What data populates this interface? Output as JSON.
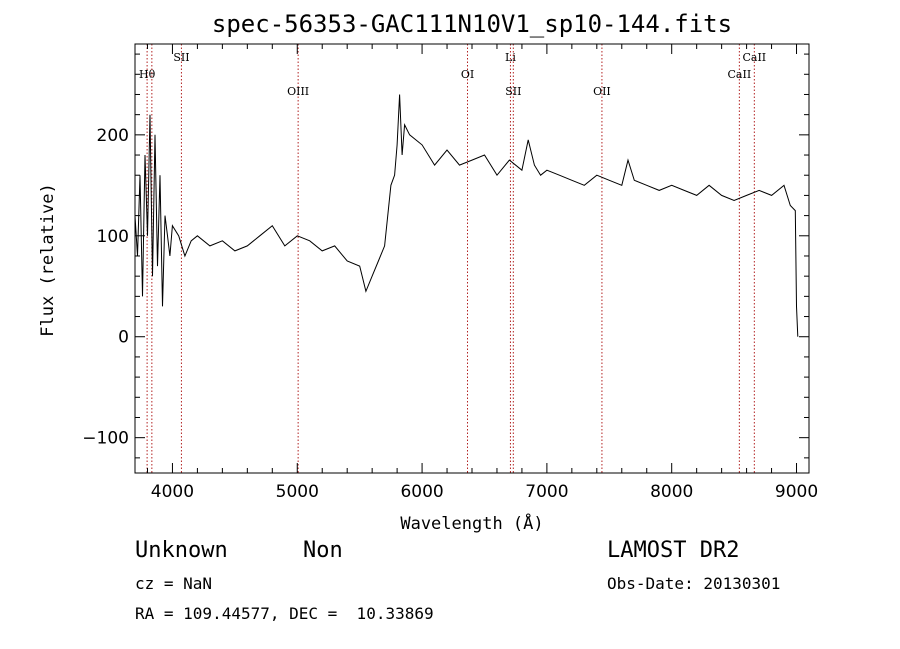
{
  "chart_data": {
    "type": "line",
    "title": "spec-56353-GAC111N10V1_sp10-144.fits",
    "xlabel": "Wavelength (Å)",
    "ylabel": "Flux (relative)",
    "xlim": [
      3700,
      9100
    ],
    "ylim": [
      -135,
      290
    ],
    "x_ticks": [
      4000,
      5000,
      6000,
      7000,
      8000,
      9000
    ],
    "y_ticks": [
      -100,
      0,
      100,
      200
    ],
    "grid": false,
    "line_color": "#000000",
    "marker_color": "#b22222",
    "spectral_lines": [
      {
        "name": "Hθ",
        "wavelength": 3797,
        "level": 1
      },
      {
        "name": "",
        "wavelength": 3835,
        "level": 1
      },
      {
        "name": "SII",
        "wavelength": 4072,
        "level": 0
      },
      {
        "name": "OIII",
        "wavelength": 5007,
        "level": 2
      },
      {
        "name": "OI",
        "wavelength": 6364,
        "level": 1
      },
      {
        "name": "Li",
        "wavelength": 6708,
        "level": 0
      },
      {
        "name": "SII",
        "wavelength": 6731,
        "level": 2
      },
      {
        "name": "OII",
        "wavelength": 7441,
        "level": 2
      },
      {
        "name": "CaII",
        "wavelength": 8542,
        "level": 1
      },
      {
        "name": "CaII",
        "wavelength": 8662,
        "level": 0
      }
    ],
    "series": [
      {
        "x": [
          3700,
          3720,
          3740,
          3760,
          3780,
          3800,
          3820,
          3840,
          3860,
          3880,
          3900,
          3920,
          3940,
          3960,
          3980,
          4000,
          4050,
          4100,
          4150,
          4200,
          4300,
          4400,
          4500,
          4600,
          4700,
          4800,
          4900,
          5000,
          5100,
          5200,
          5300,
          5400,
          5500,
          5550,
          5600,
          5650,
          5700,
          5750,
          5780,
          5800,
          5820,
          5840,
          5860,
          5900,
          6000,
          6100,
          6200,
          6300,
          6400,
          6500,
          6600,
          6700,
          6800,
          6850,
          6900,
          6950,
          7000,
          7100,
          7200,
          7300,
          7400,
          7500,
          7600,
          7650,
          7700,
          7800,
          7900,
          8000,
          8100,
          8200,
          8300,
          8400,
          8500,
          8600,
          8700,
          8800,
          8900,
          8950,
          8990,
          9000,
          9010
        ],
        "y": [
          120,
          80,
          160,
          40,
          180,
          100,
          220,
          60,
          200,
          70,
          160,
          30,
          120,
          100,
          80,
          110,
          100,
          80,
          95,
          100,
          90,
          95,
          85,
          90,
          100,
          110,
          90,
          100,
          95,
          85,
          90,
          75,
          70,
          45,
          60,
          75,
          90,
          150,
          160,
          190,
          240,
          180,
          210,
          200,
          190,
          170,
          185,
          170,
          175,
          180,
          160,
          175,
          165,
          195,
          170,
          160,
          165,
          160,
          155,
          150,
          160,
          155,
          150,
          175,
          155,
          150,
          145,
          150,
          145,
          140,
          150,
          140,
          135,
          140,
          145,
          140,
          150,
          130,
          125,
          30,
          0
        ]
      }
    ]
  },
  "info": {
    "class": "Unknown",
    "subclass": "Non",
    "survey": "LAMOST DR2",
    "cz": "cz = NaN",
    "obs_date": "Obs-Date: 20130301",
    "coords": "RA = 109.44577, DEC =  10.33869"
  }
}
